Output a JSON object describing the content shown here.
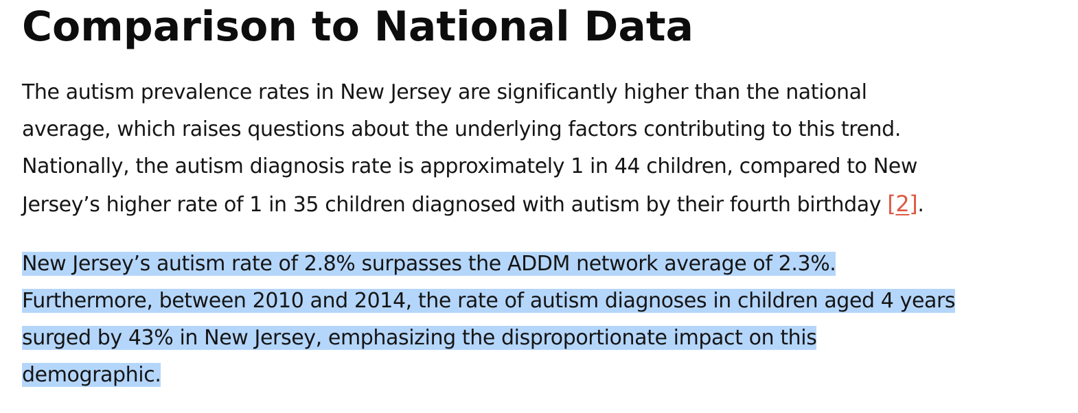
{
  "heading": "Comparison to National Data",
  "paragraph1": {
    "lines": [
      "The autism prevalence rates in New Jersey are significantly higher than the national",
      "average, which raises questions about the underlying factors contributing to this trend.",
      "Nationally, the autism diagnosis rate is approximately 1 in 44 children, compared to New",
      "Jersey’s higher rate of 1 in 35 children diagnosed with autism by their fourth birthday"
    ],
    "citation_open": "[",
    "citation_number": "2",
    "citation_close": "]",
    "end_punct": "."
  },
  "paragraph2": {
    "lines": [
      "New Jersey’s autism rate of 2.8% surpasses the ADDM network average of 2.3%.",
      "Furthermore, between 2010 and 2014, the rate of autism diagnoses in children aged 4 years",
      "surged by 43% in New Jersey, emphasizing the disproportionate impact on this",
      "demographic."
    ]
  },
  "colors": {
    "selection": "#b5d6fb",
    "citation": "#de5843"
  }
}
